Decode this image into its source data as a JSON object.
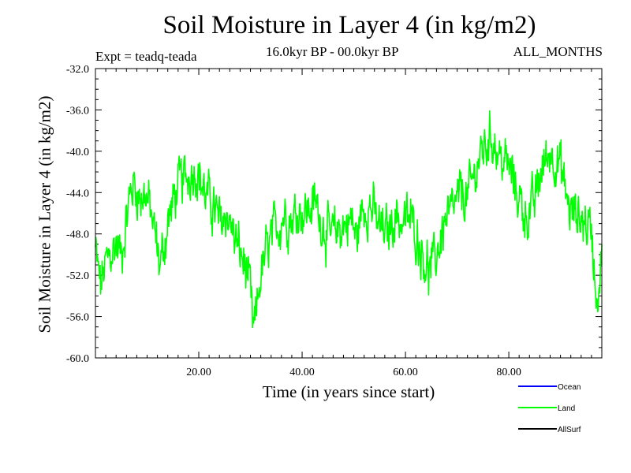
{
  "chart_data": {
    "type": "line",
    "title": "Soil Moisture in Layer 4 (in kg/m2)",
    "subtitle_left": "Expt = teadq-teada",
    "subtitle_center": "16.0kyr BP - 00.0kyr BP",
    "subtitle_right": "ALL_MONTHS",
    "xlabel": "Time (in years since start)",
    "ylabel": "Soil Moisture in Layer 4 (in kg/m2)",
    "xlim": [
      0,
      98
    ],
    "ylim": [
      -60,
      -32
    ],
    "x_ticks": [
      20,
      40,
      60,
      80
    ],
    "x_tick_labels": [
      "20.00",
      "40.00",
      "60.00",
      "80.00"
    ],
    "y_ticks": [
      -60,
      -56,
      -52,
      -48,
      -44,
      -40,
      -36,
      -32
    ],
    "y_tick_labels": [
      "-60.0",
      "-56.0",
      "-52.0",
      "-48.0",
      "-44.0",
      "-40.0",
      "-36.0",
      "-32.0"
    ],
    "legend": [
      {
        "name": "Ocean",
        "color": "#0000ff"
      },
      {
        "name": "Land",
        "color": "#00ff00"
      },
      {
        "name": "AllSurf",
        "color": "#000000"
      }
    ],
    "series": [
      {
        "name": "Land",
        "color": "#00ff00",
        "anchors_x": [
          0,
          0.5,
          1.0,
          1.5,
          2.0,
          3.0,
          4.0,
          5.0,
          6.0,
          7.0,
          7.5,
          8.5,
          9.5,
          10.5,
          11.5,
          12.5,
          13.0,
          14.0,
          15.0,
          16.0,
          17.5,
          18.5,
          19.5,
          20.5,
          21.5,
          22.5,
          24.0,
          25.5,
          27.0,
          28.5,
          29.5,
          30.0,
          30.5,
          31.0,
          31.5,
          32.0,
          33.0,
          34.0,
          35.5,
          36.5,
          38.0,
          39.5,
          40.5,
          41.5,
          42.5,
          44.0,
          45.5,
          47.0,
          48.5,
          49.5,
          50.5,
          51.5,
          52.5,
          53.5,
          55.0,
          56.5,
          58.0,
          59.5,
          61.0,
          62.5,
          63.5,
          64.5,
          65.5,
          66.5,
          67.5,
          68.5,
          70.0,
          71.0,
          72.0,
          73.0,
          74.0,
          75.0,
          76.0,
          77.0,
          78.0,
          79.0,
          80.0,
          81.0,
          82.0,
          83.0,
          84.0,
          85.0,
          86.0,
          87.0,
          88.0,
          89.0,
          90.0,
          91.0,
          92.0,
          93.0,
          94.0,
          95.0,
          96.0,
          97.0,
          98.0
        ],
        "anchors_y": [
          -49.5,
          -51.5,
          -53.0,
          -52.0,
          -51.0,
          -50.0,
          -49.0,
          -50.0,
          -46.5,
          -43.5,
          -43.0,
          -44.5,
          -44.0,
          -45.5,
          -48.0,
          -51.0,
          -50.0,
          -47.0,
          -45.0,
          -43.5,
          -42.5,
          -42.0,
          -41.5,
          -43.0,
          -44.5,
          -45.0,
          -47.0,
          -46.0,
          -48.5,
          -50.5,
          -52.0,
          -54.0,
          -57.5,
          -56.5,
          -54.0,
          -52.0,
          -50.0,
          -48.5,
          -47.0,
          -46.0,
          -46.5,
          -45.5,
          -46.0,
          -45.5,
          -45.0,
          -47.0,
          -48.5,
          -47.5,
          -47.0,
          -46.5,
          -48.5,
          -46.0,
          -45.0,
          -45.5,
          -47.5,
          -48.0,
          -46.0,
          -47.0,
          -46.5,
          -48.5,
          -50.0,
          -51.5,
          -51.0,
          -49.0,
          -47.0,
          -46.5,
          -45.0,
          -44.0,
          -44.5,
          -43.0,
          -41.0,
          -40.0,
          -39.0,
          -38.5,
          -40.5,
          -41.0,
          -41.5,
          -43.0,
          -44.5,
          -46.0,
          -46.0,
          -45.0,
          -42.5,
          -41.0,
          -40.0,
          -40.5,
          -41.5,
          -44.0,
          -46.0,
          -46.0,
          -46.5,
          -47.0,
          -47.5,
          -54.0,
          -50.5
        ],
        "noise_amplitude": 1.6,
        "sample_step": 0.1
      }
    ]
  }
}
